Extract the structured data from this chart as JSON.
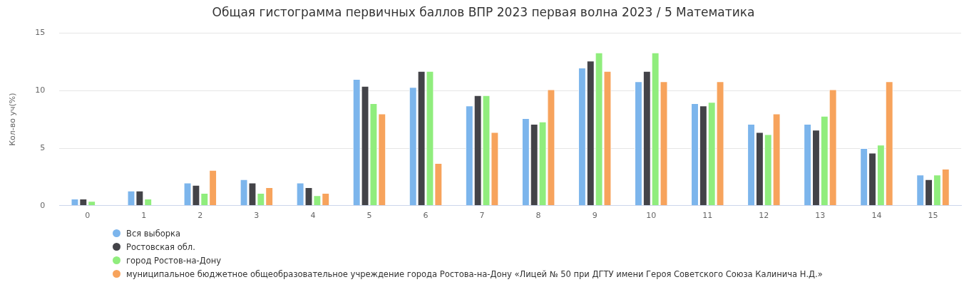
{
  "chart_data": {
    "type": "bar",
    "title": "Общая гистограмма первичных баллов ВПР 2023 первая волна 2023 / 5 Математика",
    "ylabel": "Кол-во уч(%)",
    "categories": [
      "0",
      "1",
      "2",
      "3",
      "4",
      "5",
      "6",
      "7",
      "8",
      "9",
      "10",
      "11",
      "12",
      "13",
      "14",
      "15"
    ],
    "series": [
      {
        "name": "Вся выборка",
        "color": "#7cb5ec",
        "values": [
          0.6,
          1.3,
          2.0,
          2.3,
          2.0,
          11.0,
          10.3,
          8.7,
          7.6,
          12.0,
          10.8,
          8.9,
          7.1,
          7.1,
          5.0,
          2.7
        ]
      },
      {
        "name": "Ростовская обл.",
        "color": "#434348",
        "values": [
          0.6,
          1.3,
          1.8,
          2.0,
          1.6,
          10.4,
          11.7,
          9.6,
          7.1,
          12.6,
          11.7,
          8.7,
          6.4,
          6.6,
          4.6,
          2.3
        ]
      },
      {
        "name": "город Ростов-на-Дону",
        "color": "#90ed7d",
        "values": [
          0.4,
          0.6,
          1.1,
          1.1,
          0.9,
          8.9,
          11.7,
          9.6,
          7.3,
          13.3,
          13.3,
          9.0,
          6.2,
          7.8,
          5.3,
          2.7
        ]
      },
      {
        "name": "муниципальное бюджетное общеобразовательное учреждение города Ростова-на-Дону «Лицей № 50 при ДГТУ имени Героя Советского Союза Калинича Н.Д.»",
        "color": "#f7a35c",
        "values": [
          0,
          0,
          3.1,
          1.6,
          1.1,
          8.0,
          3.7,
          6.4,
          10.1,
          11.7,
          10.8,
          10.8,
          8.0,
          10.1,
          10.8,
          3.2
        ]
      }
    ],
    "ylim": [
      0,
      15
    ],
    "yticks": [
      0,
      5,
      10,
      15
    ],
    "grid": "y",
    "legend": "bottom left"
  }
}
